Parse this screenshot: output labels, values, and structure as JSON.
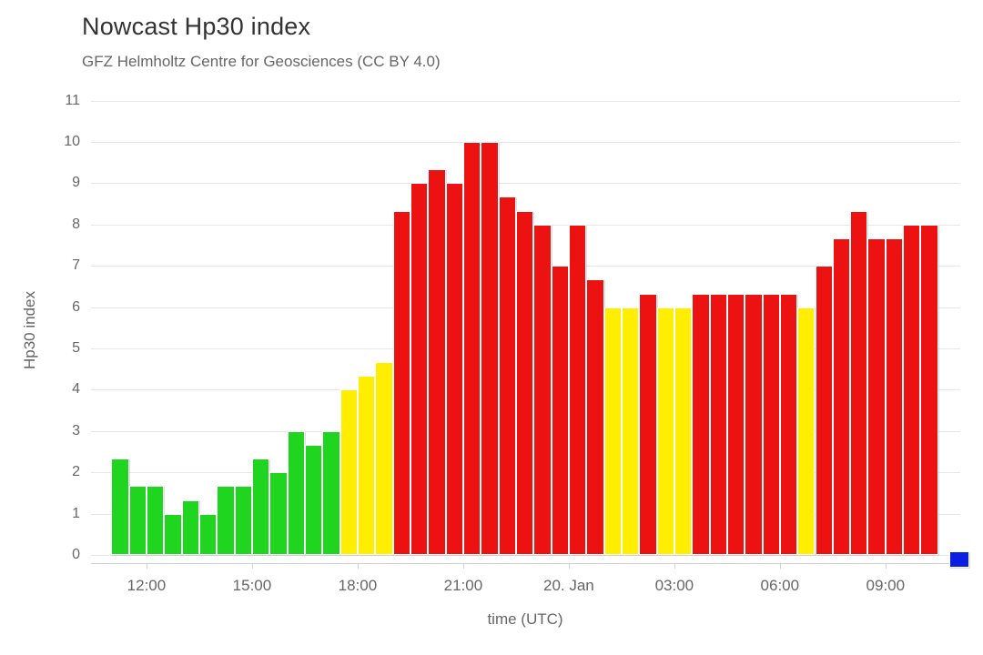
{
  "page": {
    "title": "Nowcast Hp30 index",
    "subtitle": "GFZ Helmholtz Centre for Geosciences (CC BY 4.0)"
  },
  "chart_data": {
    "type": "bar",
    "title": "Nowcast Hp30 index",
    "subtitle": "GFZ Helmholtz Centre for Geosciences (CC BY 4.0)",
    "xlabel": "time (UTC)",
    "ylabel": "Hp30 index",
    "ylim": [
      -0.2,
      11
    ],
    "yticks": [
      0,
      1,
      2,
      3,
      4,
      5,
      6,
      7,
      8,
      9,
      10,
      11
    ],
    "grid": true,
    "legend": false,
    "interval_minutes": 30,
    "xticks": [
      {
        "label": "12:00",
        "slot": 2
      },
      {
        "label": "15:00",
        "slot": 8
      },
      {
        "label": "18:00",
        "slot": 14
      },
      {
        "label": "21:00",
        "slot": 20
      },
      {
        "label": "20. Jan",
        "slot": 26
      },
      {
        "label": "03:00",
        "slot": 32
      },
      {
        "label": "06:00",
        "slot": 38
      },
      {
        "label": "09:00",
        "slot": 44
      }
    ],
    "bars": [
      {
        "time": "11:00",
        "value": 2.33,
        "level": "green"
      },
      {
        "time": "11:30",
        "value": 1.67,
        "level": "green"
      },
      {
        "time": "12:00",
        "value": 1.67,
        "level": "green"
      },
      {
        "time": "12:30",
        "value": 1.0,
        "level": "green"
      },
      {
        "time": "13:00",
        "value": 1.33,
        "level": "green"
      },
      {
        "time": "13:30",
        "value": 1.0,
        "level": "green"
      },
      {
        "time": "14:00",
        "value": 1.67,
        "level": "green"
      },
      {
        "time": "14:30",
        "value": 1.67,
        "level": "green"
      },
      {
        "time": "15:00",
        "value": 2.33,
        "level": "green"
      },
      {
        "time": "15:30",
        "value": 2.0,
        "level": "green"
      },
      {
        "time": "16:00",
        "value": 3.0,
        "level": "green"
      },
      {
        "time": "16:30",
        "value": 2.67,
        "level": "green"
      },
      {
        "time": "17:00",
        "value": 3.0,
        "level": "green"
      },
      {
        "time": "17:30",
        "value": 4.0,
        "level": "yellow"
      },
      {
        "time": "18:00",
        "value": 4.33,
        "level": "yellow"
      },
      {
        "time": "18:30",
        "value": 4.67,
        "level": "yellow"
      },
      {
        "time": "19:00",
        "value": 8.33,
        "level": "red"
      },
      {
        "time": "19:30",
        "value": 9.0,
        "level": "red"
      },
      {
        "time": "20:00",
        "value": 9.33,
        "level": "red"
      },
      {
        "time": "20:30",
        "value": 9.0,
        "level": "red"
      },
      {
        "time": "21:00",
        "value": 10.0,
        "level": "red"
      },
      {
        "time": "21:30",
        "value": 10.0,
        "level": "red"
      },
      {
        "time": "22:00",
        "value": 8.67,
        "level": "red"
      },
      {
        "time": "22:30",
        "value": 8.33,
        "level": "red"
      },
      {
        "time": "23:00",
        "value": 8.0,
        "level": "red"
      },
      {
        "time": "23:30",
        "value": 7.0,
        "level": "red"
      },
      {
        "time": "00:00",
        "value": 8.0,
        "level": "red"
      },
      {
        "time": "00:30",
        "value": 6.67,
        "level": "red"
      },
      {
        "time": "01:00",
        "value": 6.0,
        "level": "yellow"
      },
      {
        "time": "01:30",
        "value": 6.0,
        "level": "yellow"
      },
      {
        "time": "02:00",
        "value": 6.33,
        "level": "red"
      },
      {
        "time": "02:30",
        "value": 6.0,
        "level": "yellow"
      },
      {
        "time": "03:00",
        "value": 6.0,
        "level": "yellow"
      },
      {
        "time": "03:30",
        "value": 6.33,
        "level": "red"
      },
      {
        "time": "04:00",
        "value": 6.33,
        "level": "red"
      },
      {
        "time": "04:30",
        "value": 6.33,
        "level": "red"
      },
      {
        "time": "05:00",
        "value": 6.33,
        "level": "red"
      },
      {
        "time": "05:30",
        "value": 6.33,
        "level": "red"
      },
      {
        "time": "06:00",
        "value": 6.33,
        "level": "red"
      },
      {
        "time": "06:30",
        "value": 6.0,
        "level": "yellow"
      },
      {
        "time": "07:00",
        "value": 7.0,
        "level": "red"
      },
      {
        "time": "07:30",
        "value": 7.67,
        "level": "red"
      },
      {
        "time": "08:00",
        "value": 8.33,
        "level": "red"
      },
      {
        "time": "08:30",
        "value": 7.67,
        "level": "red"
      },
      {
        "time": "09:00",
        "value": 7.67,
        "level": "red"
      },
      {
        "time": "09:30",
        "value": 8.0,
        "level": "red"
      },
      {
        "time": "10:00",
        "value": 8.0,
        "level": "red"
      }
    ],
    "current_interval_marker": {
      "time": "10:30",
      "value": 0,
      "level": "blue"
    },
    "colors": {
      "green": "#20d520",
      "yellow": "#ffee00",
      "red": "#ec1212",
      "blue": "#0b1fe0",
      "gridline": "#e6e6e6",
      "axis_line": "#ccd1d9",
      "title_text": "#333333",
      "label_text": "#666666"
    }
  }
}
